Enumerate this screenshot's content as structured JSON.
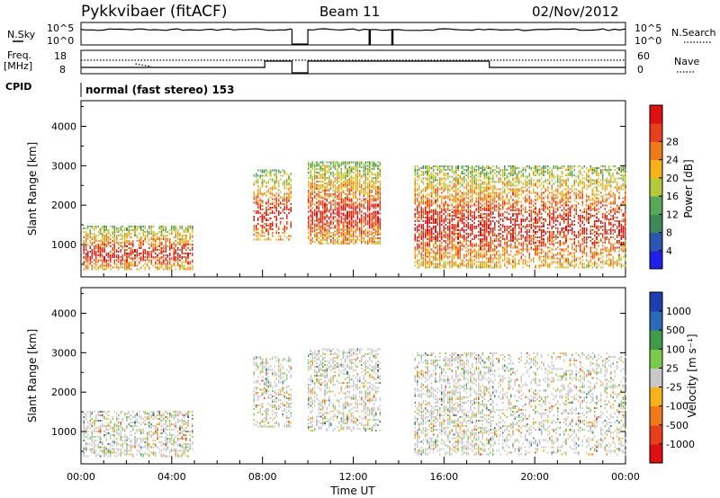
{
  "header": {
    "station": "Pykkvibaer (fitACF)",
    "beam": "Beam 11",
    "date": "02/Nov/2012"
  },
  "status_strips": {
    "nsky": {
      "left_label": "N.Sky",
      "left_ticks": [
        "10^5",
        "10^0"
      ],
      "right_ticks": [
        "10^5",
        "10^0"
      ],
      "right_label": "N.Search"
    },
    "freq": {
      "left_label_1": "Freq.",
      "left_label_2": "[MHz]",
      "left_ticks": [
        "18",
        "8"
      ],
      "right_ticks": [
        "60",
        "0"
      ],
      "right_label": "Nave"
    },
    "cpid": {
      "label": "CPID",
      "value": "normal (fast stereo) 153"
    }
  },
  "chart_data": [
    {
      "type": "heatmap",
      "name": "power-panel",
      "ylabel": "Slant Range [km]",
      "x_ticks": [
        "00:00",
        "04:00",
        "08:00",
        "12:00",
        "16:00",
        "20:00",
        "00:00"
      ],
      "x_range_hours": [
        0,
        24
      ],
      "y_ticks": [
        1000,
        2000,
        3000,
        4000
      ],
      "ylim": [
        180,
        4650
      ],
      "colorbar": {
        "label": "Power [dB]",
        "ticks": [
          "4",
          "8",
          "12",
          "16",
          "20",
          "24",
          "28"
        ],
        "colors": [
          "#1f1fe8",
          "#2b55b0",
          "#3c8a5a",
          "#58a85a",
          "#b7c93a",
          "#f5b21a",
          "#f07a1a",
          "#e8401c",
          "#e01010"
        ]
      },
      "scatter_regions": [
        {
          "t0": 0.1,
          "t1": 4.9,
          "r0": 350,
          "r1": 1450,
          "level": 0.65
        },
        {
          "t0": 7.6,
          "t1": 9.3,
          "r0": 1100,
          "r1": 2900,
          "level": 0.5
        },
        {
          "t0": 10.0,
          "t1": 13.2,
          "r0": 1000,
          "r1": 3100,
          "level": 0.75
        },
        {
          "t0": 14.7,
          "t1": 18.2,
          "r0": 400,
          "r1": 3000,
          "level": 0.7
        },
        {
          "t0": 18.2,
          "t1": 24.0,
          "r0": 400,
          "r1": 3000,
          "level": 0.55
        }
      ]
    },
    {
      "type": "heatmap",
      "name": "velocity-panel",
      "ylabel": "Slant Range [km]",
      "xlabel": "Time UT",
      "x_ticks": [
        "00:00",
        "04:00",
        "08:00",
        "12:00",
        "16:00",
        "20:00",
        "00:00"
      ],
      "x_range_hours": [
        0,
        24
      ],
      "y_ticks": [
        1000,
        2000,
        3000,
        4000
      ],
      "ylim": [
        180,
        4650
      ],
      "colorbar": {
        "label": "Velocity [m s⁻¹]",
        "ticks": [
          "1000",
          "500",
          "100",
          "25",
          "-25",
          "-100",
          "-500",
          "-1000"
        ],
        "colors": [
          "#1f3fb0",
          "#2a6ab8",
          "#3f9a4a",
          "#7ac94a",
          "#c8c8c8",
          "#f5b21a",
          "#f07a1a",
          "#e8401c",
          "#e01010"
        ]
      },
      "scatter_regions": [
        {
          "t0": 0.1,
          "t1": 4.9,
          "r0": 350,
          "r1": 1500,
          "level": 0.5
        },
        {
          "t0": 7.6,
          "t1": 9.3,
          "r0": 1100,
          "r1": 2900,
          "level": 0.45
        },
        {
          "t0": 10.0,
          "t1": 13.2,
          "r0": 1000,
          "r1": 3100,
          "level": 0.45
        },
        {
          "t0": 14.7,
          "t1": 18.2,
          "r0": 400,
          "r1": 3000,
          "level": 0.5
        },
        {
          "t0": 18.2,
          "t1": 24.0,
          "r0": 400,
          "r1": 3000,
          "level": 0.3
        }
      ]
    }
  ]
}
